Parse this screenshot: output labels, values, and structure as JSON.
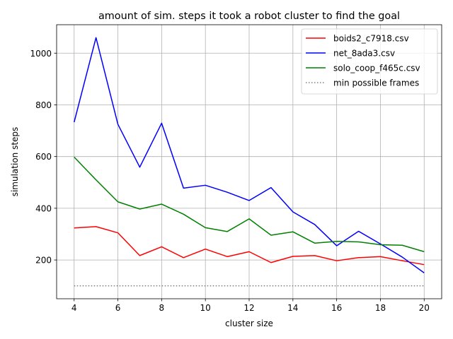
{
  "chart_data": {
    "type": "line",
    "title": "amount of sim. steps it took a robot cluster to find the goal",
    "xlabel": "cluster size",
    "ylabel": "simulation steps",
    "xlim": [
      3.2,
      20.8
    ],
    "ylim": [
      50,
      1110
    ],
    "xticks": [
      4,
      6,
      8,
      10,
      12,
      14,
      16,
      18,
      20
    ],
    "yticks": [
      200,
      400,
      600,
      800,
      1000
    ],
    "grid": true,
    "legend_position": "top-right",
    "x": [
      4,
      5,
      6,
      7,
      8,
      9,
      10,
      11,
      12,
      13,
      14,
      15,
      16,
      17,
      18,
      19,
      20
    ],
    "series": [
      {
        "name": "boids2_c7918.csv",
        "color": "#ff0000",
        "style": "solid",
        "values": [
          324,
          329,
          305,
          217,
          251,
          209,
          242,
          213,
          232,
          190,
          214,
          217,
          197,
          209,
          213,
          197,
          182
        ]
      },
      {
        "name": "net_8ada3.csv",
        "color": "#0000ff",
        "style": "solid",
        "values": [
          733,
          1060,
          725,
          559,
          729,
          478,
          489,
          462,
          430,
          480,
          386,
          337,
          255,
          311,
          262,
          211,
          150
        ]
      },
      {
        "name": "solo_coop_f465c.csv",
        "color": "#008000",
        "style": "solid",
        "values": [
          598,
          510,
          425,
          397,
          416,
          377,
          325,
          310,
          359,
          296,
          309,
          265,
          272,
          270,
          259,
          257,
          232
        ]
      },
      {
        "name": "min possible frames",
        "color": "#808080",
        "style": "dotted",
        "values": [
          100,
          100,
          100,
          100,
          100,
          100,
          100,
          100,
          100,
          100,
          100,
          100,
          100,
          100,
          100,
          100,
          100
        ]
      }
    ]
  }
}
